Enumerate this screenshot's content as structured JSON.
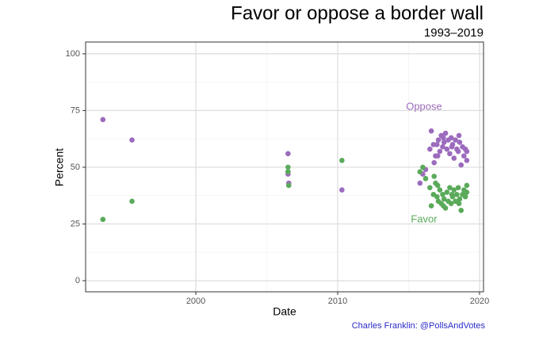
{
  "chart_data": {
    "type": "scatter",
    "title": "Favor or oppose a border wall",
    "subtitle": "1993–2019",
    "x_label": "Date",
    "y_label": "Percent",
    "caption": "Charles Franklin: @PollsAndVotes",
    "xlim": [
      1992.23,
      2020.28
    ],
    "ylim": [
      -4.9,
      105.2
    ],
    "xticks": [
      2000,
      2010,
      2020
    ],
    "yticks": [
      0,
      25,
      50,
      75,
      100
    ],
    "grid": true,
    "series": [
      {
        "name": "Oppose",
        "color": "#9c6bbd",
        "x": [
          1993.45,
          1995.5,
          2006.5,
          2006.5,
          2006.5,
          2006.55,
          2010.3,
          2015.8,
          2016.0,
          2016.2,
          2016.5,
          2016.6,
          2016.8,
          2016.9,
          2017.0,
          2017.1,
          2017.2,
          2017.3,
          2017.4,
          2017.5,
          2017.6,
          2017.7,
          2017.8,
          2017.9,
          2018.0,
          2018.1,
          2018.2,
          2018.3,
          2018.4,
          2018.5,
          2018.6,
          2018.7,
          2018.8,
          2018.9,
          2019.0,
          2019.1,
          2019.1,
          2017.05,
          2017.45,
          2018.05,
          2018.55,
          2016.75
        ],
        "values": [
          71,
          62,
          56,
          48,
          47,
          43,
          40,
          43,
          47,
          49,
          58,
          66,
          52,
          55,
          60,
          62,
          57,
          64,
          59,
          61,
          65,
          58,
          62,
          56,
          63,
          60,
          54,
          62,
          58,
          57,
          61,
          51,
          59,
          55,
          58,
          53,
          57,
          55,
          63,
          59,
          64,
          60
        ]
      },
      {
        "name": "Favor",
        "color": "#5aaa5a",
        "x": [
          1993.45,
          1995.5,
          2006.5,
          2006.5,
          2006.55,
          2010.3,
          2015.8,
          2016.0,
          2016.2,
          2016.5,
          2016.6,
          2016.8,
          2016.9,
          2017.0,
          2017.1,
          2017.2,
          2017.3,
          2017.4,
          2017.5,
          2017.6,
          2017.7,
          2017.8,
          2017.9,
          2018.0,
          2018.1,
          2018.2,
          2018.3,
          2018.4,
          2018.5,
          2018.6,
          2018.7,
          2018.8,
          2018.9,
          2019.0,
          2019.1,
          2019.1,
          2017.05,
          2017.45,
          2018.05,
          2018.55,
          2016.75
        ],
        "values": [
          27,
          35,
          50,
          48,
          42,
          53,
          48,
          50,
          45,
          41,
          33,
          46,
          43,
          37,
          35,
          40,
          34,
          38,
          36,
          32,
          39,
          35,
          41,
          34,
          37,
          40,
          35,
          38,
          41,
          36,
          31,
          38,
          40,
          37,
          42,
          39,
          42,
          33,
          38,
          34,
          38
        ]
      }
    ]
  }
}
